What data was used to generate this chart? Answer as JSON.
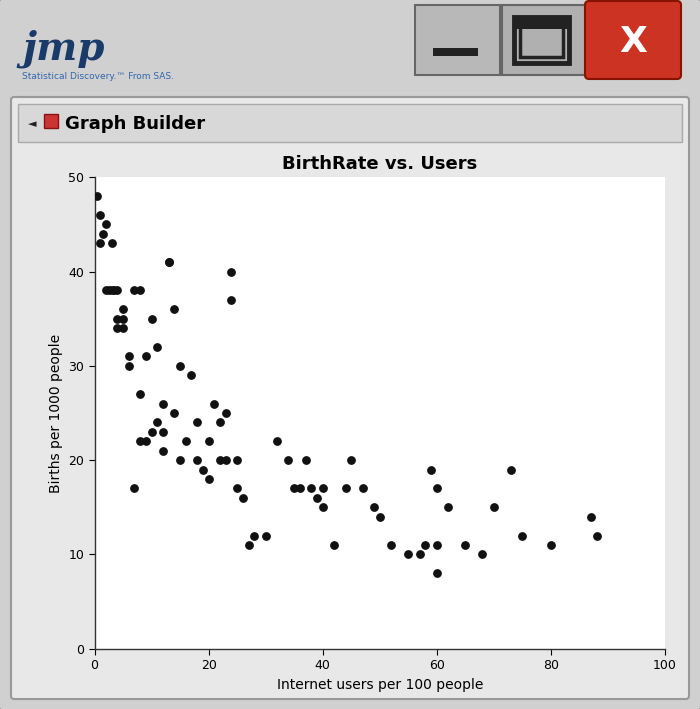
{
  "title": "BirthRate vs. Users",
  "xlabel": "Internet users per 100 people",
  "ylabel": "Births per 1000 people",
  "xlim": [
    0,
    100
  ],
  "ylim": [
    0,
    50
  ],
  "xticks": [
    0,
    20,
    40,
    60,
    80,
    100
  ],
  "yticks": [
    0,
    10,
    20,
    30,
    40,
    50
  ],
  "scatter_x": [
    0.5,
    1,
    1,
    1.5,
    2,
    2,
    2.5,
    3,
    3,
    3.5,
    4,
    4,
    4,
    5,
    5,
    5,
    6,
    6,
    7,
    7,
    8,
    8,
    8,
    9,
    9,
    10,
    10,
    11,
    11,
    12,
    12,
    12,
    13,
    13,
    14,
    14,
    15,
    15,
    16,
    17,
    18,
    18,
    19,
    20,
    20,
    21,
    22,
    22,
    23,
    23,
    24,
    24,
    25,
    25,
    26,
    27,
    28,
    30,
    32,
    34,
    35,
    36,
    37,
    38,
    39,
    40,
    40,
    42,
    44,
    45,
    47,
    49,
    50,
    52,
    55,
    57,
    58,
    59,
    60,
    60,
    60,
    62,
    65,
    68,
    70,
    73,
    75,
    80,
    87,
    88
  ],
  "scatter_y": [
    48,
    46,
    43,
    44,
    45,
    38,
    38,
    43,
    38,
    38,
    38,
    35,
    34,
    34,
    35,
    36,
    30,
    31,
    38,
    17,
    27,
    22,
    38,
    22,
    31,
    23,
    35,
    24,
    32,
    21,
    23,
    26,
    41,
    41,
    25,
    36,
    20,
    30,
    22,
    29,
    24,
    20,
    19,
    22,
    18,
    26,
    24,
    20,
    20,
    25,
    40,
    37,
    20,
    17,
    16,
    11,
    12,
    12,
    22,
    20,
    17,
    17,
    20,
    17,
    16,
    15,
    17,
    11,
    17,
    20,
    17,
    15,
    14,
    11,
    10,
    10,
    11,
    19,
    11,
    17,
    8,
    15,
    11,
    10,
    15,
    19,
    12,
    11,
    14,
    12
  ],
  "dot_color": "#111111",
  "dot_size": 28,
  "window_bg": "#d0d0d0",
  "inner_bg": "#e8e8e8",
  "plot_bg": "#ffffff",
  "title_fontsize": 13,
  "label_fontsize": 10,
  "tick_fontsize": 9,
  "header_bg": "#d8d8d8",
  "btn_bg": "#b0b0b0",
  "btn_close_bg": "#cc3322",
  "btn_close_bg2": "#aa1100"
}
